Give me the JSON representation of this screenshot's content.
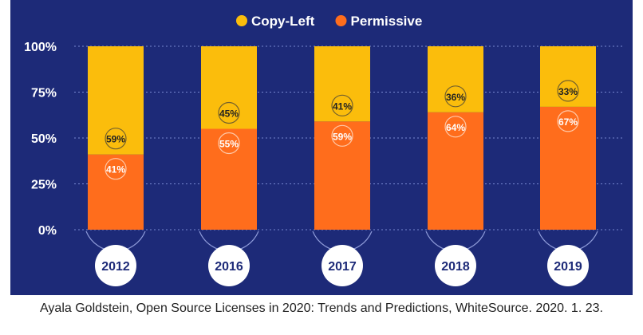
{
  "chart_data": {
    "type": "bar",
    "stacked": true,
    "percent": true,
    "categories": [
      "2012",
      "2016",
      "2017",
      "2018",
      "2019"
    ],
    "series": [
      {
        "name": "Copy-Left",
        "values": [
          59,
          45,
          41,
          36,
          33
        ],
        "color": "#fbbd0c"
      },
      {
        "name": "Permissive",
        "values": [
          41,
          55,
          59,
          64,
          67
        ],
        "color": "#ff6d1c"
      }
    ],
    "data_labels": {
      "Copy-Left": [
        "59%",
        "45%",
        "41%",
        "36%",
        "33%"
      ],
      "Permissive": [
        "41%",
        "55%",
        "59%",
        "64%",
        "67%"
      ]
    },
    "ylim": [
      0,
      100
    ],
    "yticks": [
      0,
      25,
      50,
      75,
      100
    ],
    "ytick_labels": [
      "0%",
      "25%",
      "50%",
      "75%",
      "100%"
    ],
    "grid": true,
    "legend_position": "top-center",
    "title": "",
    "xlabel": "",
    "ylabel": ""
  },
  "colors": {
    "background": "#1d2a78",
    "gridline": "#8fa0e8",
    "tick_text": "#ffffff",
    "year_circle": "#ffffff",
    "year_text": "#1d2a78"
  },
  "caption": "Ayala Goldstein, Open Source Licenses in 2020: Trends and Predictions, WhiteSource. 2020. 1. 23."
}
